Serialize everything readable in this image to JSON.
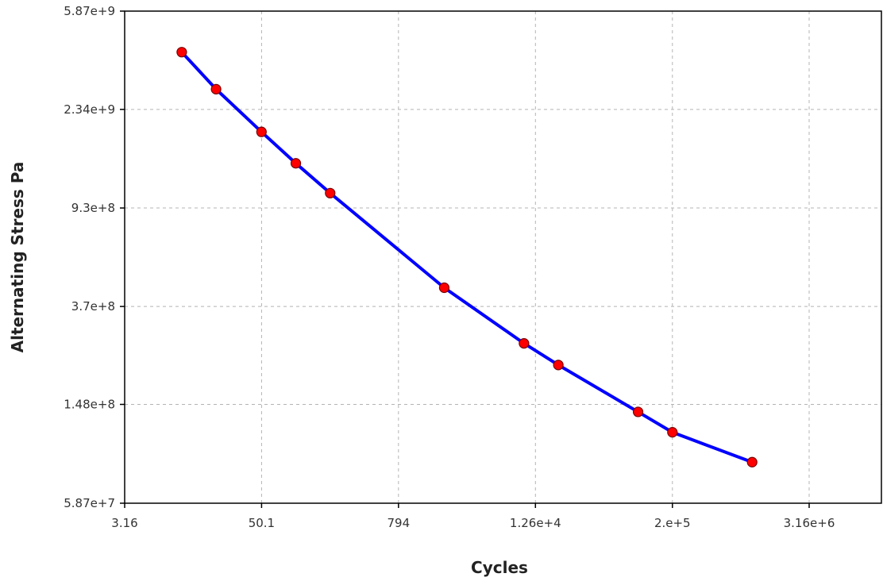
{
  "chart_data": {
    "type": "line",
    "xlabel": "Cycles",
    "ylabel": "Alternating Stress Pa",
    "x_scale": "log",
    "y_scale": "log",
    "xlim": [
      3.16,
      12600000
    ],
    "ylim": [
      58700000,
      5870000000
    ],
    "x_ticks": [
      3.16,
      50.1,
      794,
      12600,
      200000,
      3160000
    ],
    "x_tick_labels": [
      "3.16",
      "50.1",
      "794",
      "1.26e+4",
      "2.e+5",
      "3.16e+6"
    ],
    "y_ticks": [
      58700000,
      148000000,
      370000000,
      930000000,
      2340000000,
      5870000000
    ],
    "y_tick_labels": [
      "5.87e+7",
      "1.48e+8",
      "3.7e+8",
      "9.3e+8",
      "2.34e+9",
      "5.87e+9"
    ],
    "grid": true,
    "series": [
      {
        "line_color": "#0000ff",
        "marker_color": "#ff0000",
        "x": [
          10,
          20,
          50,
          100,
          200,
          2000,
          10000,
          20000,
          100000,
          200000,
          1000000
        ],
        "y": [
          3999000000,
          2827000000,
          1896000000,
          1413000000,
          1069000000,
          441000000,
          262000000,
          214000000,
          138000000,
          114000000,
          86200000
        ]
      }
    ]
  }
}
